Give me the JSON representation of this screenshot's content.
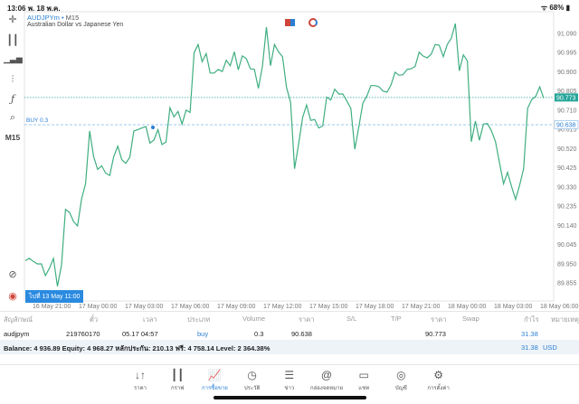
{
  "status_bar": {
    "time": "13:06",
    "date": "พ. 18 พ.ค.",
    "battery": "68%"
  },
  "chart_header": {
    "symbol": "AUDJPYm",
    "separator": "•",
    "timeframe": "M15",
    "description": "Australian Dollar vs Japanese Yen"
  },
  "toolbar": {
    "timeframe_label": "M15"
  },
  "goto_button": "ไปที่ 13 May 11:00",
  "buy_line_label": "BUY 0.3",
  "colors": {
    "line": "#3fae80",
    "bid": "#26a69a",
    "buy": "#2a7fd4"
  },
  "chart_data": {
    "type": "line",
    "y_ticks": [
      "91.090",
      "90.995",
      "90.900",
      "90.805",
      "90.710",
      "90.615",
      "90.520",
      "90.425",
      "90.330",
      "90.235",
      "90.140",
      "90.045",
      "89.950",
      "89.855"
    ],
    "ylim": [
      89.83,
      91.14
    ],
    "x_ticks": [
      "16 May 21:00",
      "17 May 00:00",
      "17 May 03:00",
      "17 May 06:00",
      "17 May 09:00",
      "17 May 12:00",
      "17 May 15:00",
      "17 May 18:00",
      "17 May 21:00",
      "18 May 00:00",
      "18 May 03:00",
      "18 May 06:00"
    ],
    "current_price": "90.773",
    "current_price_value": 90.773,
    "buy_price": "90.638",
    "buy_price_value": 90.638,
    "values": [
      89.965,
      89.976,
      89.961,
      89.949,
      89.949,
      89.891,
      89.928,
      89.976,
      89.838,
      89.943,
      90.219,
      90.204,
      90.159,
      90.137,
      90.271,
      90.346,
      90.607,
      90.48,
      90.417,
      90.435,
      90.398,
      90.387,
      90.48,
      90.532,
      90.465,
      90.447,
      90.477,
      90.607,
      90.614,
      90.622,
      90.629,
      90.547,
      90.562,
      90.614,
      90.54,
      90.552,
      90.722,
      90.677,
      90.704,
      90.641,
      90.71,
      90.699,
      90.995,
      91.035,
      90.95,
      90.99,
      90.894,
      90.894,
      90.912,
      90.901,
      90.957,
      90.93,
      90.999,
      90.91,
      90.979,
      90.965,
      90.915,
      90.912,
      90.818,
      90.928,
      91.121,
      90.93,
      91.035,
      90.999,
      90.975,
      90.823,
      90.749,
      90.42,
      90.54,
      90.674,
      90.736,
      90.659,
      90.664,
      90.622,
      90.632,
      90.775,
      90.76,
      90.814,
      90.79,
      90.79,
      90.756,
      90.719,
      90.517,
      90.629,
      90.745,
      90.781,
      90.832,
      90.832,
      90.826,
      90.805,
      90.799,
      90.835,
      90.898,
      90.883,
      90.886,
      90.912,
      90.915,
      90.927,
      90.997,
      90.978,
      90.969,
      90.987,
      91.035,
      91.032,
      90.975,
      91.035,
      91.066,
      91.139,
      90.905,
      90.984,
      90.954,
      90.554,
      90.656,
      90.561,
      90.641,
      90.644,
      90.607,
      90.554,
      90.45,
      90.346,
      90.402,
      90.331,
      90.268,
      90.338,
      90.42,
      90.719,
      90.763,
      90.778,
      90.826,
      90.769
    ]
  },
  "table": {
    "headers": [
      "สัญลักษณ์",
      "ตั๋ว",
      "เวลา",
      "ประเภท",
      "Volume",
      "ราคา",
      "S/L",
      "T/P",
      "ราคา",
      "Swap",
      "กำไร",
      "หมายเหตุ"
    ],
    "row": {
      "symbol": "audjpym",
      "ticket": "219760170",
      "time": "05.17 04:57",
      "type": "buy",
      "volume": "0.3",
      "open_price": "90.638",
      "current_price": "90.773",
      "profit": "31.38"
    }
  },
  "summary": {
    "text": "Balance: 4 936.89 Equity: 4 968.27 หลักประกัน: 210.13 ฟรี: 4 758.14 Level: 2 364.38%",
    "profit": "31.38",
    "currency": "USD"
  },
  "nav": [
    {
      "label": "ราคา",
      "icon": "↓↑"
    },
    {
      "label": "กราฟ",
      "icon": "┃┃"
    },
    {
      "label": "การซื้อขาย",
      "icon": "📈"
    },
    {
      "label": "ประวัติ",
      "icon": "◷"
    },
    {
      "label": "ข่าว",
      "icon": "☰"
    },
    {
      "label": "กล่องจดหมาย",
      "icon": "@"
    },
    {
      "label": "แชท",
      "icon": "▭"
    },
    {
      "label": "บัญชี",
      "icon": "◎"
    },
    {
      "label": "การตั้งค่า",
      "icon": "⚙"
    }
  ]
}
